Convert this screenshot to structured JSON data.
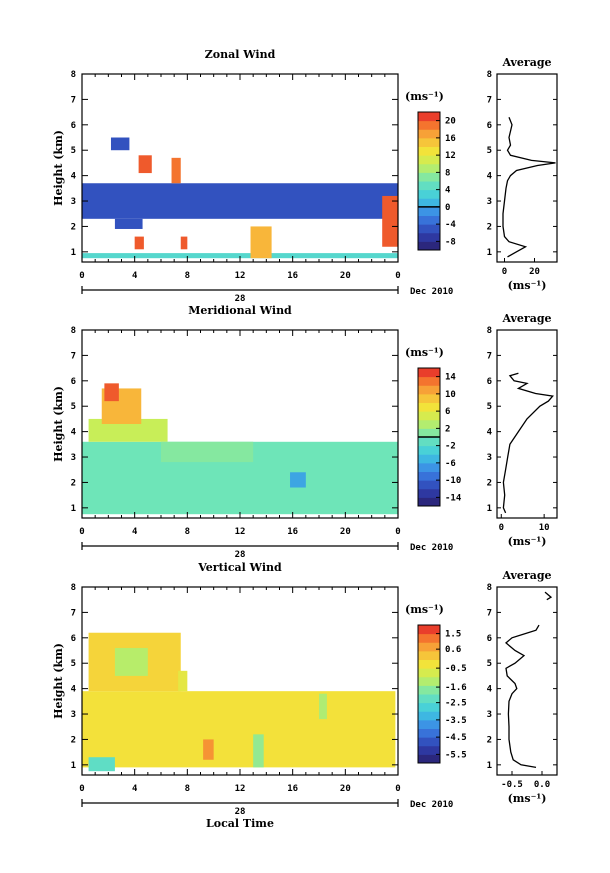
{
  "chart_data": [
    {
      "type": "heatmap",
      "title": "Zonal Wind",
      "ylabel": "Height (km)",
      "y_ticks": [
        "1",
        "2",
        "3",
        "4",
        "5",
        "6",
        "7",
        "8"
      ],
      "ylim": [
        0.6,
        8.0
      ],
      "x_ticks": [
        "0",
        "4",
        "8",
        "12",
        "16",
        "20",
        "0"
      ],
      "xlim": [
        0,
        24
      ],
      "date_day": "28",
      "date_label": "Dec 2010",
      "colorbar": {
        "unit": "(ms⁻¹)",
        "ticks": [
          "20",
          "16",
          "12",
          "8",
          "4",
          "0",
          "-4",
          "-8"
        ],
        "range": [
          -10,
          22
        ],
        "zero_line": 0
      },
      "layers": [
        {
          "t0": 0.0,
          "t1": 24.0,
          "h0": 2.3,
          "h1": 3.7,
          "value": -5
        },
        {
          "t0": 0.0,
          "t1": 24.0,
          "h0": 0.75,
          "h1": 0.95,
          "value": 4
        },
        {
          "t0": 2.5,
          "t1": 4.6,
          "h0": 1.9,
          "h1": 2.3,
          "value": -5
        },
        {
          "t0": 2.2,
          "t1": 3.6,
          "h0": 5.0,
          "h1": 5.5,
          "value": -5
        },
        {
          "t0": 4.3,
          "t1": 5.3,
          "h0": 4.1,
          "h1": 4.8,
          "value": 20
        },
        {
          "t0": 6.8,
          "t1": 7.5,
          "h0": 3.7,
          "h1": 4.7,
          "value": 19
        },
        {
          "t0": 12.8,
          "t1": 14.4,
          "h0": 0.75,
          "h1": 2.0,
          "value": 16
        },
        {
          "t0": 22.8,
          "t1": 24.0,
          "h0": 1.2,
          "h1": 3.2,
          "value": 20
        },
        {
          "t0": 4.0,
          "t1": 4.7,
          "h0": 1.1,
          "h1": 1.6,
          "value": 20
        },
        {
          "t0": 7.5,
          "t1": 8.0,
          "h0": 1.1,
          "h1": 1.6,
          "value": 20
        }
      ],
      "profile": {
        "title": "Average",
        "xlabel": "(ms⁻¹)",
        "x_ticks": [
          "0",
          "20"
        ],
        "xlim": [
          -5,
          35
        ],
        "heights": [
          0.8,
          1.0,
          1.2,
          1.4,
          1.6,
          2.0,
          2.5,
          3.0,
          3.5,
          3.8,
          4.0,
          4.2,
          4.4,
          4.5,
          4.6,
          4.8,
          5.0,
          5.2,
          5.5,
          6.0,
          6.3
        ],
        "values": [
          2,
          8,
          14,
          3,
          0,
          -1,
          -1,
          0,
          1,
          2,
          4,
          8,
          22,
          34,
          18,
          4,
          2,
          4,
          3,
          5,
          3
        ]
      }
    },
    {
      "type": "heatmap",
      "title": "Meridional Wind",
      "ylabel": "Height (km)",
      "y_ticks": [
        "1",
        "2",
        "3",
        "4",
        "5",
        "6",
        "7",
        "8"
      ],
      "ylim": [
        0.6,
        8.0
      ],
      "x_ticks": [
        "0",
        "4",
        "8",
        "12",
        "16",
        "20",
        "0"
      ],
      "xlim": [
        0,
        24
      ],
      "date_day": "28",
      "date_label": "Dec 2010",
      "colorbar": {
        "unit": "(ms⁻¹)",
        "ticks": [
          "14",
          "10",
          "6",
          "2",
          "-2",
          "-6",
          "-10",
          "-14"
        ],
        "range": [
          -16,
          16
        ],
        "zero_line": 0
      },
      "layers": [
        {
          "t0": 0.0,
          "t1": 24.0,
          "h0": 0.75,
          "h1": 3.6,
          "value": 0
        },
        {
          "t0": 0.5,
          "t1": 6.5,
          "h0": 3.6,
          "h1": 4.5,
          "value": 4
        },
        {
          "t0": 1.5,
          "t1": 4.5,
          "h0": 4.3,
          "h1": 5.7,
          "value": 10
        },
        {
          "t0": 1.7,
          "t1": 2.8,
          "h0": 5.2,
          "h1": 5.9,
          "value": 14
        },
        {
          "t0": 6.0,
          "t1": 13.0,
          "h0": 2.8,
          "h1": 3.6,
          "value": 1
        },
        {
          "t0": 15.8,
          "t1": 17.0,
          "h0": 1.8,
          "h1": 2.4,
          "value": -6
        }
      ],
      "profile": {
        "title": "Average",
        "xlabel": "(ms⁻¹)",
        "x_ticks": [
          "0",
          "10"
        ],
        "xlim": [
          -1,
          13
        ],
        "heights": [
          0.8,
          1.0,
          1.5,
          2.0,
          2.5,
          3.0,
          3.5,
          4.0,
          4.5,
          5.0,
          5.2,
          5.4,
          5.5,
          5.7,
          5.9,
          6.0,
          6.2,
          6.3
        ],
        "values": [
          1,
          0.5,
          0.8,
          0.5,
          1,
          1.5,
          2,
          4,
          6,
          9,
          11,
          12,
          8,
          4,
          6,
          3,
          2,
          4
        ]
      }
    },
    {
      "type": "heatmap",
      "title": "Vertical Wind",
      "ylabel": "Height (km)",
      "y_ticks": [
        "1",
        "2",
        "3",
        "4",
        "5",
        "6",
        "7",
        "8"
      ],
      "ylim": [
        0.6,
        8.0
      ],
      "x_ticks": [
        "0",
        "4",
        "8",
        "12",
        "16",
        "20",
        "0"
      ],
      "xlim": [
        0,
        24
      ],
      "date_day": "28",
      "date_label": "Dec 2010",
      "xlabel": "Local Time",
      "colorbar": {
        "unit": "(ms⁻¹)",
        "ticks": [
          "1.5",
          "0.6",
          "-0.5",
          "-1.6",
          "-2.5",
          "-3.5",
          "-4.5",
          "-5.5"
        ],
        "range": [
          -6.0,
          2.0
        ],
        "zero_line": null
      },
      "layers": [
        {
          "t0": 0.0,
          "t1": 23.8,
          "h0": 0.9,
          "h1": 3.9,
          "value": -0.2
        },
        {
          "t0": 0.5,
          "t1": 7.5,
          "h0": 3.9,
          "h1": 6.2,
          "value": 0.0
        },
        {
          "t0": 2.5,
          "t1": 5.0,
          "h0": 4.5,
          "h1": 5.6,
          "value": -1.2
        },
        {
          "t0": 7.3,
          "t1": 8.0,
          "h0": 3.9,
          "h1": 4.7,
          "value": -0.5
        },
        {
          "t0": 0.5,
          "t1": 2.5,
          "h0": 0.75,
          "h1": 1.3,
          "value": -2.3
        },
        {
          "t0": 13.0,
          "t1": 13.8,
          "h0": 0.9,
          "h1": 2.2,
          "value": -1.6
        },
        {
          "t0": 9.2,
          "t1": 10.0,
          "h0": 1.2,
          "h1": 2.0,
          "value": 0.9
        },
        {
          "t0": 18.0,
          "t1": 18.6,
          "h0": 2.8,
          "h1": 3.8,
          "value": -1.3
        }
      ],
      "profile": {
        "title": "Average",
        "xlabel": "(ms⁻¹)",
        "x_ticks": [
          "-0.5",
          "0.0"
        ],
        "xlim": [
          -0.75,
          0.25
        ],
        "heights": [
          0.9,
          1.0,
          1.2,
          1.5,
          2.0,
          2.5,
          3.0,
          3.5,
          3.8,
          4.0,
          4.2,
          4.5,
          4.8,
          5.0,
          5.3,
          5.5,
          5.8,
          6.0,
          6.3,
          6.5,
          7.0,
          7.5,
          7.6,
          7.8
        ],
        "values": [
          -0.1,
          -0.35,
          -0.48,
          -0.52,
          -0.55,
          -0.55,
          -0.56,
          -0.55,
          -0.5,
          -0.42,
          -0.45,
          -0.58,
          -0.6,
          -0.45,
          -0.3,
          -0.45,
          -0.6,
          -0.5,
          -0.1,
          -0.05,
          null,
          0.08,
          0.15,
          0.05
        ]
      }
    }
  ]
}
